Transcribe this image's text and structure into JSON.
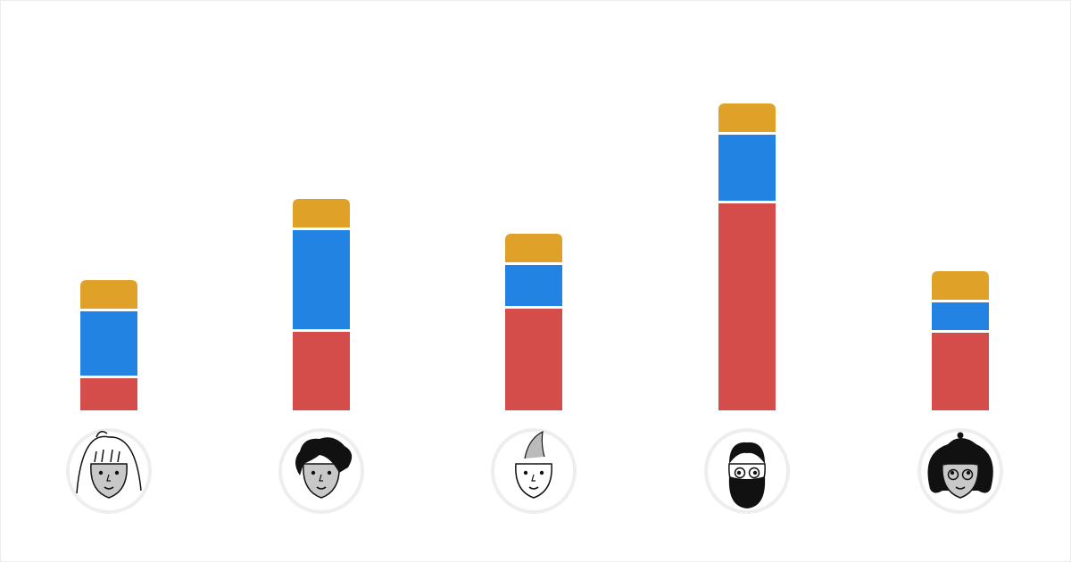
{
  "chart_data": {
    "type": "bar",
    "stacked": true,
    "categories": [
      "person-1",
      "person-2",
      "person-3",
      "person-4",
      "person-5"
    ],
    "series": [
      {
        "values": [
          36,
          88,
          114,
          232,
          87
        ],
        "color": "#d44d4a"
      },
      {
        "values": [
          75,
          114,
          49,
          77,
          34
        ],
        "color": "#2383e2"
      },
      {
        "values": [
          35,
          35,
          35,
          35,
          35
        ],
        "color": "#dfa128"
      }
    ],
    "title": "",
    "xlabel": "",
    "ylabel": "",
    "ylim": [
      0,
      350
    ],
    "grid": false,
    "legend": "none",
    "category_markers": [
      "avatar-long-hair",
      "avatar-curly-hair",
      "avatar-quiff",
      "avatar-beard-glasses",
      "avatar-curly-hair-glasses"
    ]
  }
}
